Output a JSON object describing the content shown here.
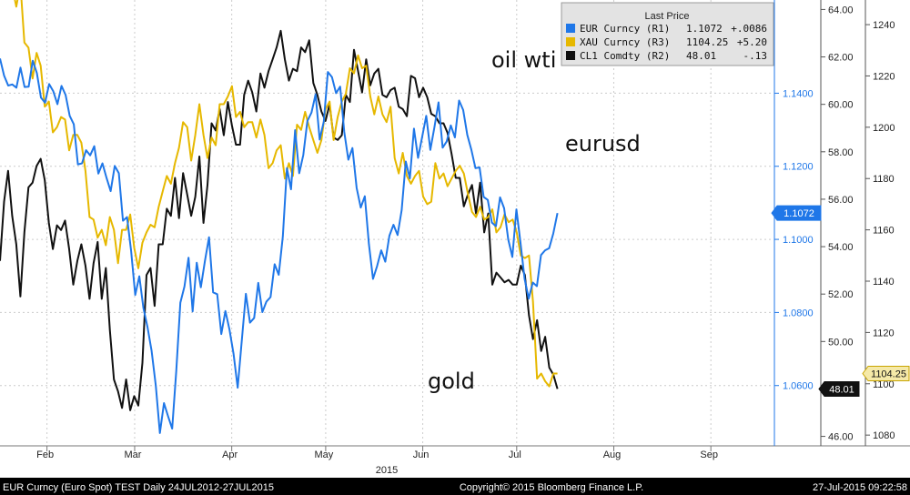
{
  "chart_data": {
    "type": "line",
    "legend": {
      "title": "Last Price",
      "placement": "top-right",
      "entries": [
        {
          "ticker": "EUR Curncy",
          "axis": "(R1)",
          "price": "1.1072",
          "change": "+.0086",
          "color": "#1f77e8"
        },
        {
          "ticker": "XAU Curncy",
          "axis": "(R3)",
          "price": "1104.25",
          "change": "+5.20",
          "color": "#e6b800"
        },
        {
          "ticker": "CL1 Comdty",
          "axis": "(R2)",
          "price": "48.01",
          "change": "-.13",
          "color": "#111111"
        }
      ]
    },
    "annotations": [
      {
        "text": "oil wti",
        "series": "oil"
      },
      {
        "text": "eurusd",
        "series": "eur"
      },
      {
        "text": "gold",
        "series": "gold"
      }
    ],
    "x_ticks": [
      "Feb",
      "Mar",
      "Apr",
      "May",
      "Jun",
      "Jul",
      "Aug",
      "Sep"
    ],
    "x_year": "2015",
    "x_tick_days": [
      31,
      59,
      90,
      120,
      151,
      181,
      212,
      243
    ],
    "x_range_days": [
      16,
      263
    ],
    "axes": {
      "eur": {
        "ticks": [
          "1.0600",
          "1.0800",
          "1.1000",
          "1.1200",
          "1.1400"
        ],
        "range": [
          1.0435,
          1.1655
        ],
        "color": "#1f77e8"
      },
      "oil": {
        "ticks": [
          "46.00",
          "48.00",
          "50.00",
          "52.00",
          "54.00",
          "56.00",
          "58.00",
          "60.00",
          "62.00",
          "64.00"
        ],
        "range": [
          45.6,
          64.4
        ],
        "color": "#222222"
      },
      "gold": {
        "ticks": [
          "1080",
          "1100",
          "1120",
          "1140",
          "1160",
          "1180",
          "1200",
          "1220",
          "1240"
        ],
        "range": [
          1075.8,
          1249.6
        ],
        "color": "#222222"
      }
    },
    "last_labels": {
      "eur": "1.1072",
      "gold": "1104.25",
      "oil": "48.01"
    },
    "series": [
      {
        "id": "eur",
        "name": "EUR Curncy",
        "start_day": 16,
        "values": [
          1.1495,
          1.1448,
          1.1421,
          1.1424,
          1.1415,
          1.147,
          1.1417,
          1.1418,
          1.1489,
          1.1455,
          1.1388,
          1.1374,
          1.1425,
          1.1405,
          1.137,
          1.142,
          1.1395,
          1.1338,
          1.1315,
          1.1205,
          1.1208,
          1.1244,
          1.123,
          1.1255,
          1.118,
          1.1208,
          1.1168,
          1.1132,
          1.1201,
          1.1181,
          1.1051,
          1.1061,
          1.0968,
          1.0848,
          1.0899,
          1.0812,
          1.076,
          1.0695,
          1.06,
          1.047,
          1.0552,
          1.0516,
          1.0482,
          1.064,
          1.0827,
          1.0871,
          1.095,
          1.0803,
          1.0936,
          1.0869,
          1.0941,
          1.1006,
          1.0855,
          1.085,
          1.0741,
          1.0804,
          1.0753,
          1.0686,
          1.0594,
          1.0723,
          1.0851,
          1.0772,
          1.0785,
          1.0881,
          1.0801,
          1.083,
          1.0842,
          1.0932,
          1.0903,
          1.1008,
          1.1195,
          1.1137,
          1.1299,
          1.1181,
          1.1231,
          1.1324,
          1.1347,
          1.1397,
          1.1273,
          1.1322,
          1.1458,
          1.1444,
          1.14,
          1.1418,
          1.1294,
          1.1218,
          1.125,
          1.1141,
          1.1087,
          1.1118,
          1.0987,
          1.0892,
          1.0927,
          1.097,
          1.0939,
          1.101,
          1.104,
          1.1012,
          1.108,
          1.1213,
          1.1167,
          1.1303,
          1.1223,
          1.128,
          1.1338,
          1.1245,
          1.1307,
          1.1375,
          1.1251,
          1.1268,
          1.1312,
          1.1279,
          1.138,
          1.1354,
          1.1286,
          1.1245,
          1.1195,
          1.1197,
          1.1116,
          1.1108,
          1.1046,
          1.1036,
          1.1115,
          1.1085,
          1.1,
          1.0952,
          1.1082,
          1.099,
          1.0892,
          1.0838,
          1.0882,
          1.0872,
          1.0957,
          1.097,
          1.0976,
          1.1016,
          1.1072
        ]
      },
      {
        "id": "gold",
        "name": "XAU Curncy",
        "start_day": 16,
        "values": [
          1277,
          1267,
          1253,
          1255,
          1247,
          1256,
          1233,
          1231,
          1219,
          1229,
          1224,
          1208,
          1210,
          1198,
          1200,
          1204,
          1203,
          1191,
          1197,
          1197,
          1194,
          1183,
          1165,
          1164,
          1157,
          1160,
          1154,
          1165,
          1160,
          1147,
          1160,
          1160,
          1166,
          1153,
          1145,
          1155,
          1159,
          1162,
          1161,
          1169,
          1175,
          1181,
          1178,
          1186,
          1192,
          1202,
          1200,
          1187,
          1197,
          1209,
          1197,
          1188,
          1196,
          1193,
          1209,
          1209,
          1212,
          1216,
          1204,
          1206,
          1200,
          1202,
          1202,
          1196,
          1203,
          1197,
          1184,
          1186,
          1191,
          1193,
          1180,
          1186,
          1181,
          1201,
          1199,
          1206,
          1200,
          1195,
          1190,
          1195,
          1207,
          1210,
          1195,
          1204,
          1210,
          1213,
          1223,
          1221,
          1228,
          1223,
          1224,
          1212,
          1205,
          1212,
          1205,
          1202,
          1208,
          1188,
          1182,
          1190,
          1181,
          1178,
          1181,
          1183,
          1173,
          1170,
          1171,
          1186,
          1180,
          1182,
          1177,
          1180,
          1183,
          1185,
          1182,
          1174,
          1167,
          1165,
          1169,
          1164,
          1165,
          1168,
          1159,
          1161,
          1166,
          1163,
          1164,
          1159,
          1150,
          1149,
          1150,
          1132,
          1102,
          1104,
          1101,
          1099,
          1104,
          1104
        ]
      },
      {
        "id": "oil",
        "name": "CL1 Comdty",
        "start_day": 16,
        "values": [
          53.4,
          55.9,
          57.2,
          55.3,
          54.1,
          51.9,
          54.6,
          56.5,
          56.7,
          57.4,
          57.7,
          56.8,
          55.0,
          53.9,
          54.9,
          54.7,
          55.1,
          53.9,
          52.4,
          53.4,
          54.1,
          53.2,
          51.8,
          53.3,
          54.2,
          51.8,
          53.1,
          50.5,
          48.4,
          47.9,
          47.2,
          48.4,
          47.1,
          47.7,
          47.3,
          49.1,
          52.8,
          53.1,
          51.5,
          54.1,
          54.1,
          55.6,
          55.3,
          56.9,
          55.2,
          57.1,
          56.2,
          55.3,
          56.1,
          57.8,
          55.0,
          56.6,
          59.2,
          58.9,
          59.8,
          58.7,
          60.1,
          59.1,
          58.3,
          58.3,
          60.4,
          61.0,
          60.5,
          59.7,
          61.3,
          60.7,
          61.4,
          61.9,
          62.4,
          63.1,
          61.9,
          61.0,
          61.5,
          61.4,
          62.4,
          62.2,
          62.7,
          60.9,
          60.4,
          59.7,
          59.3,
          60.0,
          58.6,
          58.5,
          58.7,
          60.4,
          60.1,
          62.3,
          61.4,
          60.5,
          61.9,
          60.8,
          61.3,
          61.5,
          60.4,
          60.3,
          60.6,
          60.7,
          59.9,
          59.8,
          59.5,
          61.2,
          61.1,
          60.3,
          60.7,
          60.3,
          59.6,
          59.5,
          59.2,
          59.2,
          58.8,
          57.9,
          56.9,
          56.9,
          55.7,
          56.2,
          56.6,
          55.4,
          56.7,
          54.6,
          55.4,
          52.4,
          52.9,
          52.7,
          52.5,
          52.6,
          52.4,
          52.4,
          53.2,
          52.8,
          51.1,
          50.1,
          50.9,
          49.6,
          50.2,
          48.9,
          48.6,
          48.0
        ]
      }
    ]
  },
  "footer": {
    "left": "EUR Curncy (Euro Spot) TEST  Daily 24JUL2012-27JUL2015",
    "center": "Copyright© 2015 Bloomberg Finance L.P.",
    "right": "27-Jul-2015 09:22:58"
  }
}
